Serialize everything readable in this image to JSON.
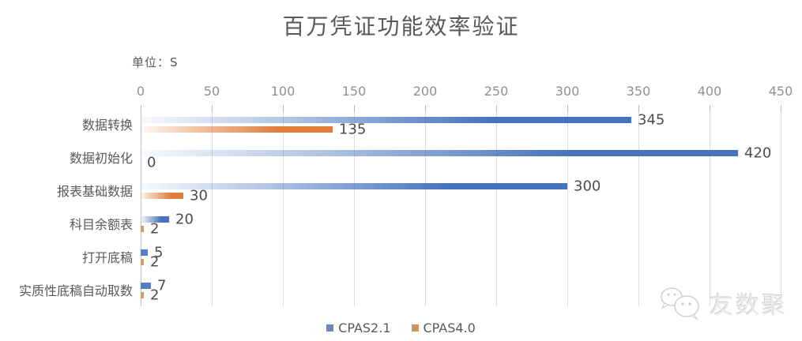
{
  "title": "百万凭证功能效率验证",
  "unit_label": "单位：S",
  "chart_data": {
    "type": "bar",
    "orientation": "horizontal",
    "title": "百万凭证功能效率验证",
    "unit": "S",
    "categories": [
      "数据转换",
      "数据初始化",
      "报表基础数据",
      "科目余额表",
      "打开底稿",
      "实质性底稿自动取数"
    ],
    "series": [
      {
        "name": "CPAS2.1",
        "color": "#4673bd",
        "legend_color": "#6a89b4",
        "values": [
          345,
          420,
          300,
          20,
          5,
          7
        ]
      },
      {
        "name": "CPAS4.0",
        "color": "#df7e3c",
        "legend_color": "#cb9660",
        "values": [
          135,
          0,
          30,
          2,
          2,
          2
        ]
      }
    ],
    "value_labels": [
      [
        "345",
        "135"
      ],
      [
        "420",
        "0"
      ],
      [
        "300",
        "30"
      ],
      [
        "20",
        "2"
      ],
      [
        "5",
        "2"
      ],
      [
        "7",
        "2"
      ]
    ],
    "xlim": [
      0,
      450
    ],
    "xticks": [
      0,
      50,
      100,
      150,
      200,
      250,
      300,
      350,
      400,
      450
    ],
    "grid": true,
    "legend_position": "bottom-center",
    "axis_position": "top"
  },
  "watermark": {
    "text": "友数聚",
    "icon": "wechat-chat-bubbles-icon"
  },
  "colors": {
    "series_blue": "#4673bd",
    "series_orange": "#df7e3c",
    "gridline": "#dcdcdc",
    "axis_line": "#c2c2c2",
    "title_text": "#595959",
    "tick_text": "#8f8f8f",
    "value_text": "#4d4d4d",
    "watermark_text": "#d9d9d9"
  }
}
